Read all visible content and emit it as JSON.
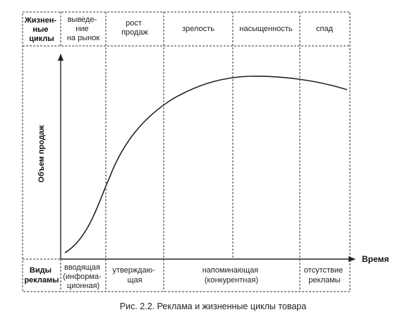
{
  "header": {
    "row_title": [
      "Жизнен-",
      "ные",
      "циклы"
    ],
    "stages": [
      {
        "lines": [
          "выведе-",
          "ние",
          "на рынок"
        ]
      },
      {
        "lines": [
          "рост",
          "продаж"
        ]
      },
      {
        "lines": [
          "зрелость"
        ]
      },
      {
        "lines": [
          "насыщенность"
        ]
      },
      {
        "lines": [
          "спад"
        ]
      }
    ]
  },
  "axes": {
    "y_label": "Объем продаж",
    "x_label": "Время"
  },
  "footer": {
    "row_title": [
      "Виды",
      "рекламы"
    ],
    "ad_types": [
      {
        "lines": [
          "вводящая",
          "(информа-",
          "ционная)"
        ]
      },
      {
        "lines": [
          "утверждаю-",
          "щая"
        ]
      },
      {
        "lines": [
          "напоминающая",
          "(конкурентная)"
        ]
      },
      {
        "lines": [
          "отсутствие",
          "рекламы"
        ]
      }
    ]
  },
  "caption": "Рис. 2.2. Реклама и жизненные циклы товара",
  "colors": {
    "line": "#222222",
    "background": "#ffffff"
  }
}
